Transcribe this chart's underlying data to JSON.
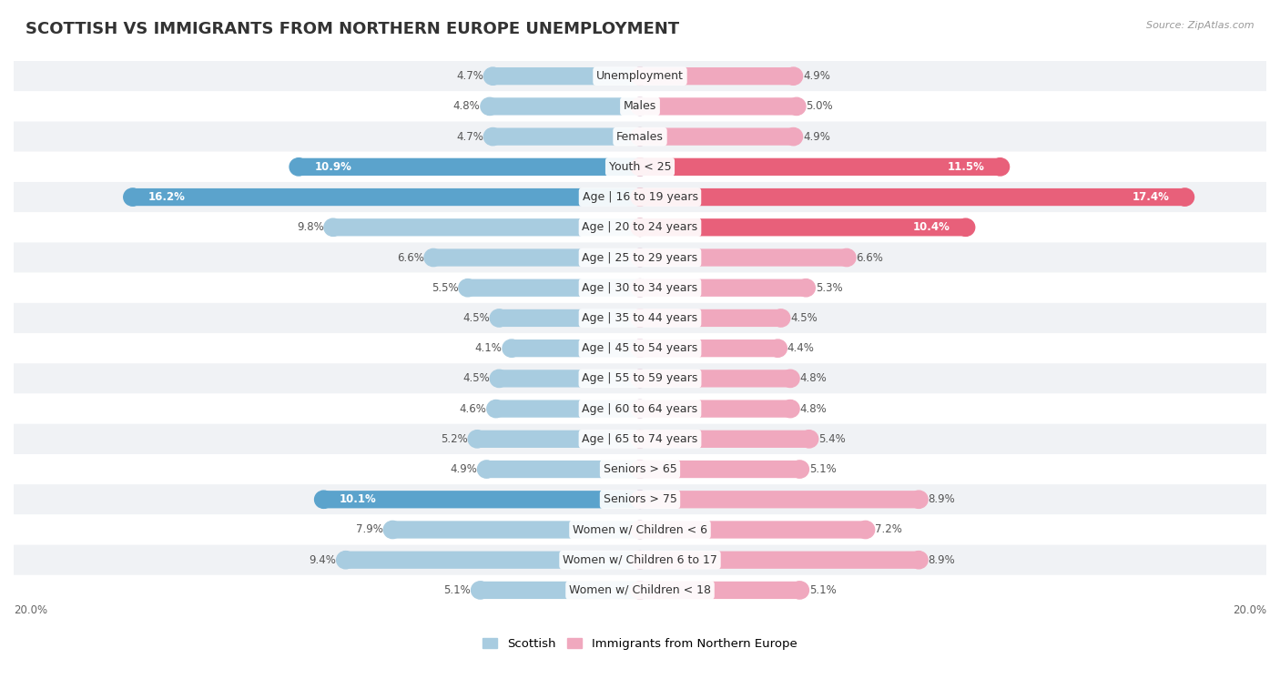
{
  "title": "SCOTTISH VS IMMIGRANTS FROM NORTHERN EUROPE UNEMPLOYMENT",
  "source": "Source: ZipAtlas.com",
  "categories": [
    "Unemployment",
    "Males",
    "Females",
    "Youth < 25",
    "Age | 16 to 19 years",
    "Age | 20 to 24 years",
    "Age | 25 to 29 years",
    "Age | 30 to 34 years",
    "Age | 35 to 44 years",
    "Age | 45 to 54 years",
    "Age | 55 to 59 years",
    "Age | 60 to 64 years",
    "Age | 65 to 74 years",
    "Seniors > 65",
    "Seniors > 75",
    "Women w/ Children < 6",
    "Women w/ Children 6 to 17",
    "Women w/ Children < 18"
  ],
  "scottish_values": [
    4.7,
    4.8,
    4.7,
    10.9,
    16.2,
    9.8,
    6.6,
    5.5,
    4.5,
    4.1,
    4.5,
    4.6,
    5.2,
    4.9,
    10.1,
    7.9,
    9.4,
    5.1
  ],
  "immigrant_values": [
    4.9,
    5.0,
    4.9,
    11.5,
    17.4,
    10.4,
    6.6,
    5.3,
    4.5,
    4.4,
    4.8,
    4.8,
    5.4,
    5.1,
    8.9,
    7.2,
    8.9,
    5.1
  ],
  "scottish_color": "#a8cce0",
  "immigrant_color": "#f0a8be",
  "highlight_scottish_color": "#5ba3cc",
  "highlight_immigrant_color": "#e8607a",
  "background_color": "#ffffff",
  "row_color_even": "#f0f2f5",
  "row_color_odd": "#ffffff",
  "max_value": 20.0,
  "legend_scottish": "Scottish",
  "legend_immigrant": "Immigrants from Northern Europe",
  "title_fontsize": 13,
  "label_fontsize": 9,
  "value_fontsize": 8.5,
  "axis_fontsize": 8.5,
  "bar_height": 0.58
}
